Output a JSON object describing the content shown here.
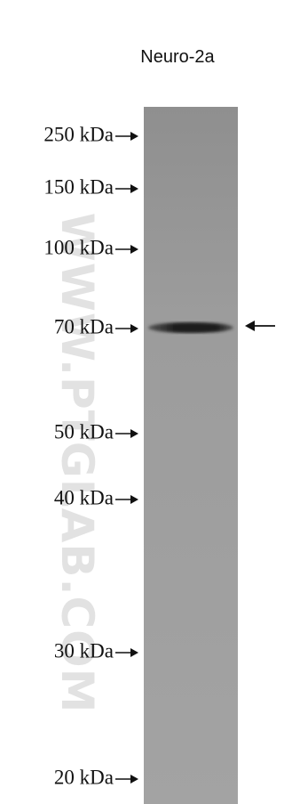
{
  "lane_label": "Neuro-2a",
  "markers": [
    "250 kDa",
    "150 kDa",
    "100 kDa",
    "70 kDa",
    "50 kDa",
    "40 kDa",
    "30 kDa",
    "20 kDa"
  ],
  "watermark": "WWW.PTGLAB.COM"
}
